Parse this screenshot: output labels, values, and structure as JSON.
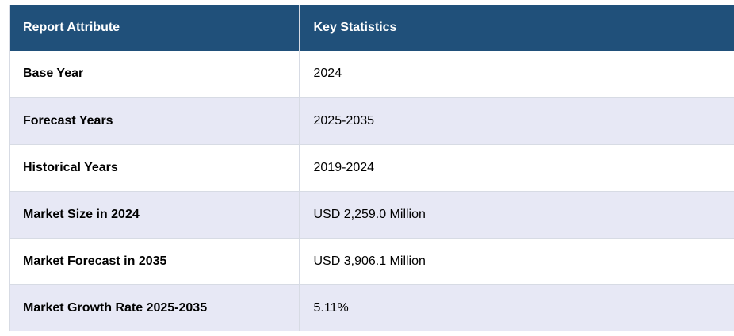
{
  "table": {
    "headers": {
      "attribute": "Report Attribute",
      "statistics": "Key Statistics"
    },
    "rows": [
      {
        "attribute": "Base Year",
        "value": "2024"
      },
      {
        "attribute": "Forecast Years",
        "value": "2025-2035"
      },
      {
        "attribute": "Historical Years",
        "value": "2019-2024"
      },
      {
        "attribute": "Market Size in 2024",
        "value": "USD 2,259.0 Million"
      },
      {
        "attribute": "Market Forecast in 2035",
        "value": "USD 3,906.1 Million"
      },
      {
        "attribute": "Market Growth Rate 2025-2035",
        "value": "5.11%"
      }
    ],
    "colors": {
      "header_bg": "#20507a",
      "header_text": "#ffffff",
      "row_alt_bg": "#e7e8f5",
      "row_bg": "#ffffff",
      "border": "#d7dbe4"
    }
  }
}
